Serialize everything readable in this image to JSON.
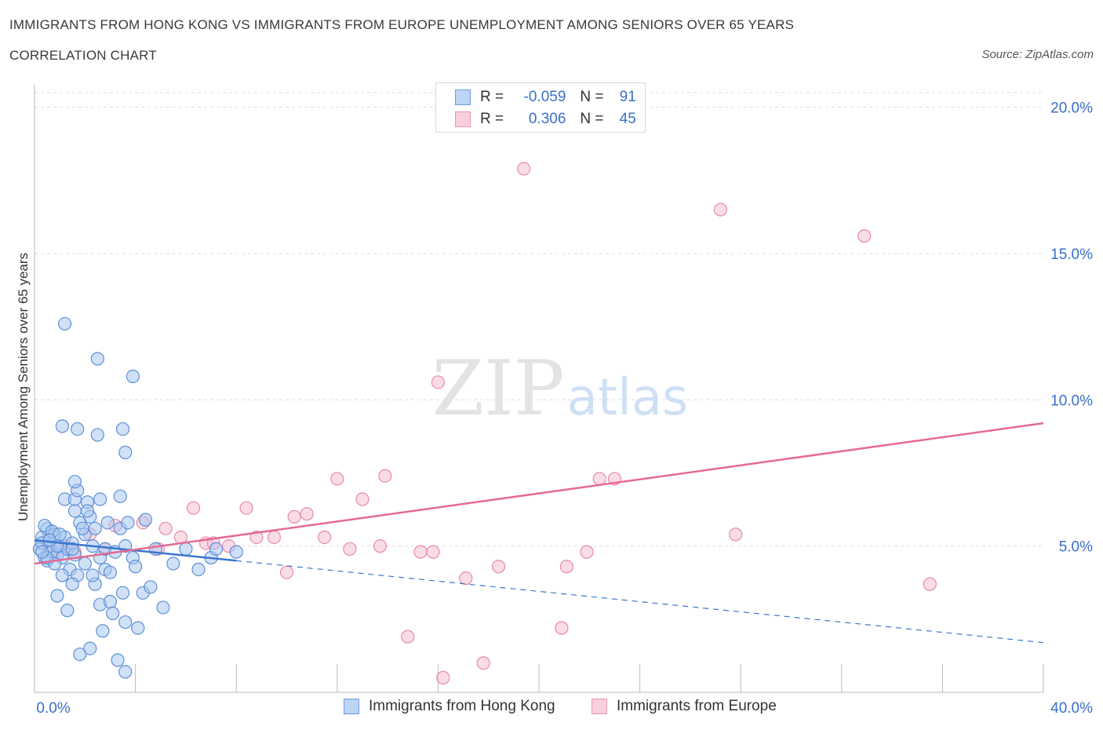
{
  "header": {
    "title": "IMMIGRANTS FROM HONG KONG VS IMMIGRANTS FROM EUROPE UNEMPLOYMENT AMONG SENIORS OVER 65 YEARS",
    "subtitle": "CORRELATION CHART",
    "source": "Source: ZipAtlas.com"
  },
  "legend": {
    "r_label": "R =",
    "n_label": "N =",
    "rows": [
      {
        "name": "Immigrants from Hong Kong",
        "r": "-0.059",
        "n": "91"
      },
      {
        "name": "Immigrants from Europe",
        "r": "0.306",
        "n": "45"
      }
    ]
  },
  "watermark": {
    "zip": "ZIP",
    "atlas": "atlas"
  },
  "colors": {
    "blue_fill": "#a9c8f0",
    "blue_stroke": "#5d8fd6",
    "blue_line": "#3a76d0",
    "pink_fill": "#f6c0d2",
    "pink_stroke": "#e88aaa",
    "pink_line": "#e56a94",
    "axis_text": "#3a6fc9",
    "grid": "#dddddd"
  },
  "chart_data": {
    "type": "scatter",
    "title": "IMMIGRANTS FROM HONG KONG VS IMMIGRANTS FROM EUROPE UNEMPLOYMENT AMONG SENIORS OVER 65 YEARS",
    "xlabel": "",
    "ylabel": "Unemployment Among Seniors over 65 years",
    "xlim": [
      0,
      40
    ],
    "ylim": [
      0,
      20.5
    ],
    "x_tick_labels": [
      "0.0%",
      "40.0%"
    ],
    "y_ticks": [
      5,
      10,
      15,
      20
    ],
    "y_tick_labels": [
      "5.0%",
      "10.0%",
      "15.0%",
      "20.0%"
    ],
    "grid": true,
    "series": [
      {
        "name": "Immigrants from Hong Kong",
        "color": "blue",
        "trend": {
          "x_solid": [
            0,
            8
          ],
          "y_solid": [
            5.2,
            4.5
          ],
          "x_dashed": [
            8,
            40
          ],
          "y_dashed": [
            4.5,
            1.7
          ]
        },
        "points": [
          [
            0.2,
            4.9
          ],
          [
            0.3,
            5.3
          ],
          [
            0.4,
            4.6
          ],
          [
            0.5,
            5.6
          ],
          [
            0.6,
            5.0
          ],
          [
            0.7,
            4.8
          ],
          [
            0.8,
            5.4
          ],
          [
            0.9,
            4.7
          ],
          [
            0.3,
            5.1
          ],
          [
            0.5,
            4.5
          ],
          [
            0.6,
            5.2
          ],
          [
            1.0,
            5.0
          ],
          [
            1.1,
            4.6
          ],
          [
            1.2,
            5.3
          ],
          [
            0.8,
            4.4
          ],
          [
            0.4,
            5.7
          ],
          [
            0.7,
            5.5
          ],
          [
            1.3,
            4.9
          ],
          [
            1.5,
            5.1
          ],
          [
            1.6,
            4.7
          ],
          [
            1.8,
            5.8
          ],
          [
            2.0,
            5.4
          ],
          [
            2.2,
            6.0
          ],
          [
            2.4,
            5.6
          ],
          [
            1.4,
            4.2
          ],
          [
            1.7,
            4.0
          ],
          [
            2.6,
            4.6
          ],
          [
            2.9,
            5.8
          ],
          [
            3.4,
            5.6
          ],
          [
            1.2,
            6.6
          ],
          [
            1.6,
            6.6
          ],
          [
            2.6,
            6.6
          ],
          [
            1.7,
            6.9
          ],
          [
            1.6,
            7.2
          ],
          [
            2.1,
            6.5
          ],
          [
            1.6,
            6.2
          ],
          [
            2.1,
            6.2
          ],
          [
            1.1,
            4.0
          ],
          [
            1.5,
            3.7
          ],
          [
            2.4,
            3.7
          ],
          [
            2.6,
            3.0
          ],
          [
            3.0,
            3.1
          ],
          [
            3.5,
            3.4
          ],
          [
            4.3,
            3.4
          ],
          [
            2.8,
            4.2
          ],
          [
            0.9,
            3.3
          ],
          [
            1.3,
            2.8
          ],
          [
            2.7,
            2.1
          ],
          [
            3.1,
            2.7
          ],
          [
            3.6,
            2.4
          ],
          [
            4.1,
            2.2
          ],
          [
            5.1,
            2.9
          ],
          [
            1.8,
            1.3
          ],
          [
            2.2,
            1.5
          ],
          [
            3.3,
            1.1
          ],
          [
            3.6,
            0.7
          ],
          [
            3.4,
            6.7
          ],
          [
            3.7,
            5.8
          ],
          [
            1.1,
            9.1
          ],
          [
            1.7,
            9.0
          ],
          [
            2.5,
            8.8
          ],
          [
            3.5,
            9.0
          ],
          [
            3.6,
            8.2
          ],
          [
            2.5,
            11.4
          ],
          [
            3.9,
            10.8
          ],
          [
            1.2,
            12.6
          ],
          [
            0.5,
            4.6
          ],
          [
            0.3,
            4.8
          ],
          [
            0.9,
            5.0
          ],
          [
            1.0,
            5.4
          ],
          [
            0.6,
            5.2
          ],
          [
            1.9,
            5.6
          ],
          [
            2.3,
            5.0
          ],
          [
            2.8,
            4.9
          ],
          [
            3.2,
            4.8
          ],
          [
            3.9,
            4.6
          ],
          [
            4.0,
            4.3
          ],
          [
            4.4,
            5.9
          ],
          [
            4.8,
            4.9
          ],
          [
            3.0,
            4.1
          ],
          [
            2.0,
            4.4
          ],
          [
            1.5,
            4.9
          ],
          [
            2.3,
            4.0
          ],
          [
            3.6,
            5.0
          ],
          [
            4.6,
            3.6
          ],
          [
            7.0,
            4.6
          ],
          [
            7.2,
            4.9
          ],
          [
            6.0,
            4.9
          ],
          [
            8.0,
            4.8
          ],
          [
            5.5,
            4.4
          ],
          [
            6.5,
            4.2
          ]
        ]
      },
      {
        "name": "Immigrants from Europe",
        "color": "pink",
        "trend": {
          "x": [
            0,
            40
          ],
          "y": [
            4.4,
            9.2
          ]
        },
        "points": [
          [
            0.5,
            5.2
          ],
          [
            0.8,
            4.7
          ],
          [
            1.2,
            5.0
          ],
          [
            1.6,
            4.8
          ],
          [
            2.2,
            5.4
          ],
          [
            2.8,
            4.9
          ],
          [
            3.2,
            5.7
          ],
          [
            4.3,
            5.8
          ],
          [
            4.9,
            4.9
          ],
          [
            5.2,
            5.6
          ],
          [
            5.8,
            5.3
          ],
          [
            6.3,
            6.3
          ],
          [
            6.8,
            5.1
          ],
          [
            7.1,
            5.1
          ],
          [
            7.7,
            5.0
          ],
          [
            8.4,
            6.3
          ],
          [
            8.8,
            5.3
          ],
          [
            9.5,
            5.3
          ],
          [
            10.0,
            4.1
          ],
          [
            10.3,
            6.0
          ],
          [
            10.8,
            6.1
          ],
          [
            11.5,
            5.3
          ],
          [
            12.0,
            7.3
          ],
          [
            12.5,
            4.9
          ],
          [
            13.0,
            6.6
          ],
          [
            13.7,
            5.0
          ],
          [
            13.9,
            7.4
          ],
          [
            14.8,
            1.9
          ],
          [
            15.3,
            4.8
          ],
          [
            15.8,
            4.8
          ],
          [
            16.2,
            0.5
          ],
          [
            17.1,
            3.9
          ],
          [
            17.8,
            1.0
          ],
          [
            18.4,
            4.3
          ],
          [
            19.4,
            17.9
          ],
          [
            20.9,
            2.2
          ],
          [
            21.1,
            4.3
          ],
          [
            21.9,
            4.8
          ],
          [
            22.4,
            7.3
          ],
          [
            23.0,
            7.3
          ],
          [
            27.2,
            16.5
          ],
          [
            27.8,
            5.4
          ],
          [
            32.9,
            15.6
          ],
          [
            35.5,
            3.7
          ],
          [
            16.0,
            10.6
          ]
        ]
      }
    ]
  }
}
